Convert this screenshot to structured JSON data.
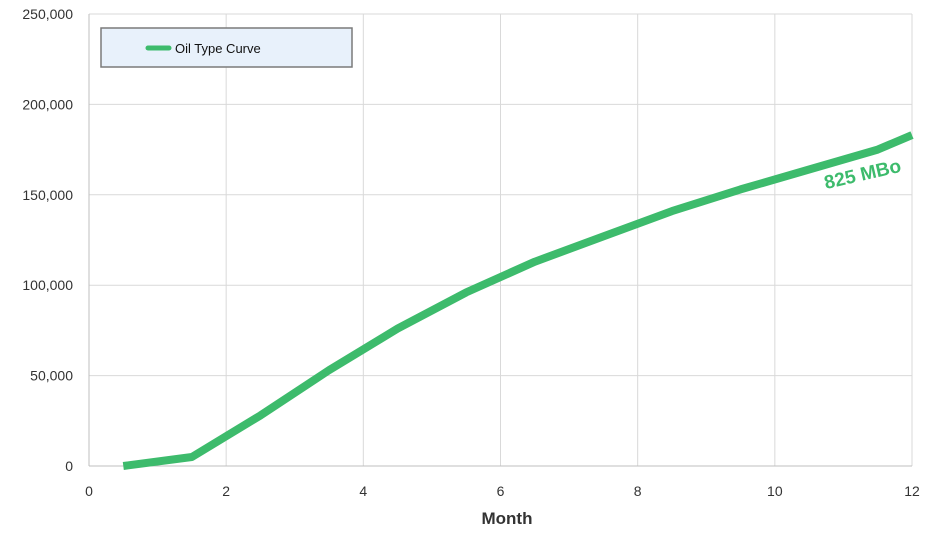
{
  "chart_data": {
    "type": "line",
    "title": "",
    "xlabel": "Month",
    "ylabel": "",
    "xlim": [
      0,
      12
    ],
    "ylim": [
      0,
      250000
    ],
    "xticks": [
      0,
      2,
      4,
      6,
      8,
      10,
      12
    ],
    "yticks": [
      0,
      50000,
      100000,
      150000,
      200000,
      250000
    ],
    "xtick_labels": [
      "0",
      "2",
      "4",
      "6",
      "8",
      "10",
      "12"
    ],
    "ytick_labels": [
      "0",
      "50,000",
      "100,000",
      "150,000",
      "200,000",
      "250,000"
    ],
    "grid": true,
    "legend_position": "top-left",
    "legend_entries": [
      "Oil Type Curve"
    ],
    "series": [
      {
        "name": "Oil Type Curve",
        "color": "#3dbb6c",
        "x": [
          0.5,
          1.5,
          2.5,
          3.5,
          4.5,
          5.5,
          6.5,
          7.5,
          8.5,
          9.5,
          10.5,
          11.5,
          12
        ],
        "y": [
          0,
          5000,
          28000,
          53000,
          76000,
          96000,
          113000,
          127000,
          141000,
          153000,
          164000,
          175000,
          183000
        ]
      }
    ],
    "annotations": [
      {
        "text": "825 MBo",
        "x": 11.3,
        "y": 158000,
        "color": "#3dbb6c"
      }
    ]
  }
}
